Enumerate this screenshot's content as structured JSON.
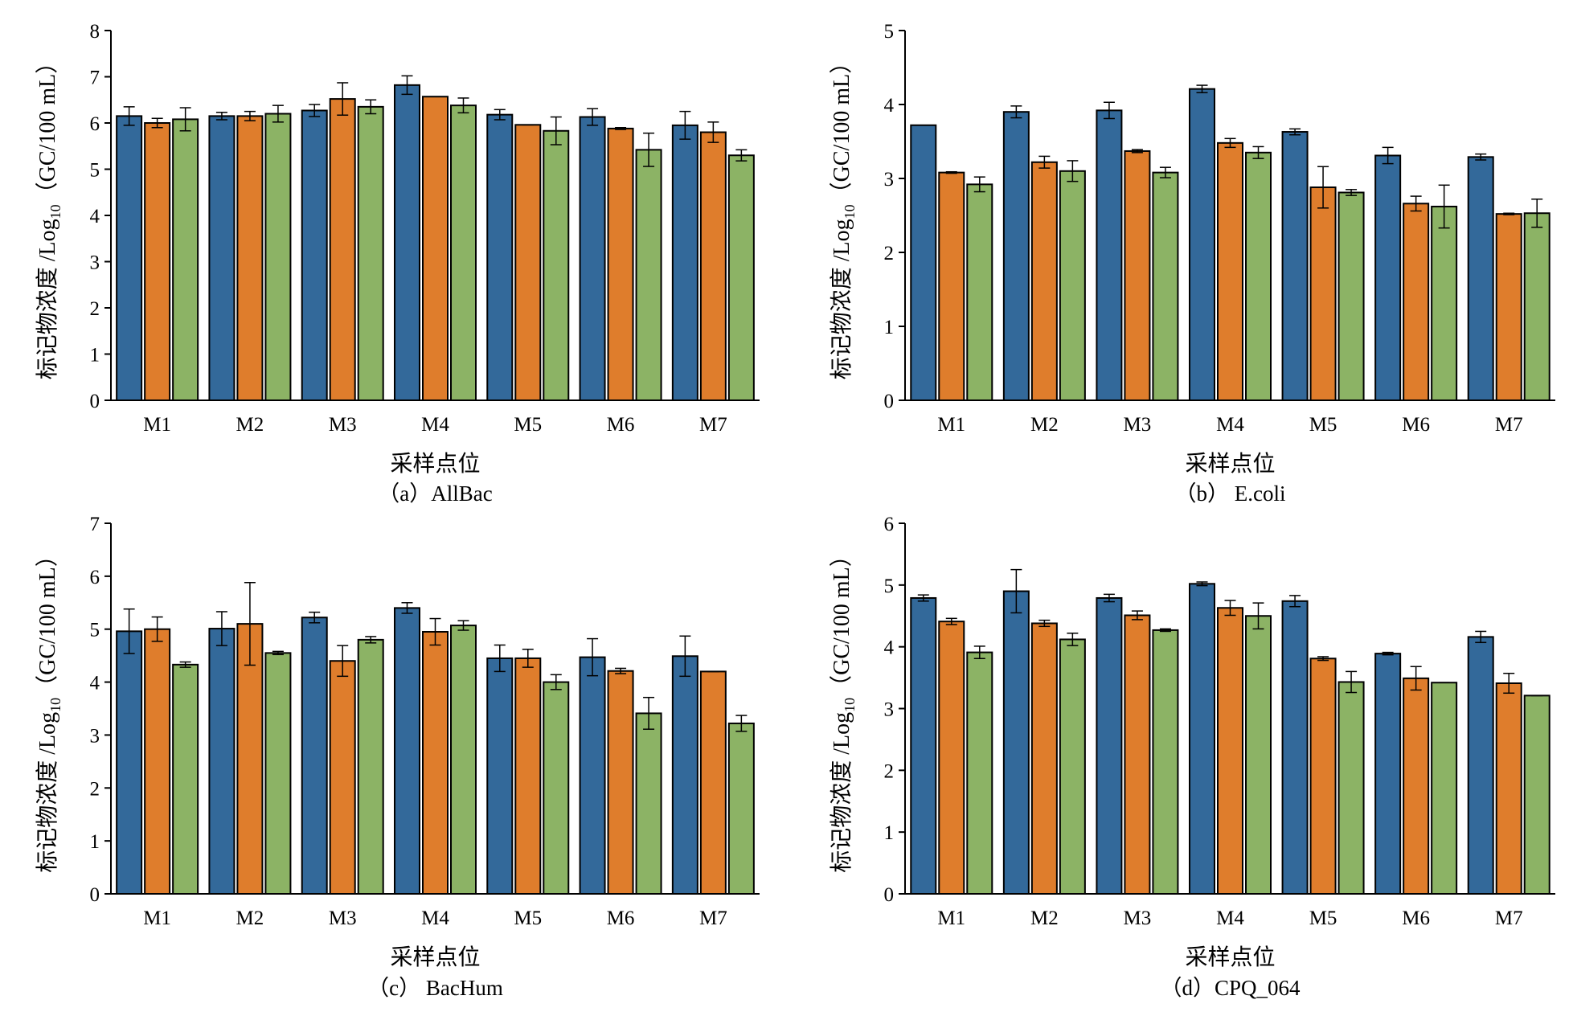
{
  "colors": {
    "series1": "#33699a",
    "series2": "#df7d2c",
    "series3": "#8cb365",
    "axis": "#000000"
  },
  "chart_data": [
    {
      "type": "bar",
      "caption": "（a）AllBac",
      "xlabel": "采样点位",
      "ylabel_main": "标记物浓度 /Log",
      "ylabel_sub": "10",
      "ylabel_tail": "（GC/100 mL）",
      "ylim": [
        0,
        8
      ],
      "yticks": [
        0,
        1,
        2,
        3,
        4,
        5,
        6,
        7,
        8
      ],
      "categories": [
        "M1",
        "M2",
        "M3",
        "M4",
        "M5",
        "M6",
        "M7"
      ],
      "series": [
        {
          "values": [
            6.15,
            6.15,
            6.27,
            6.82,
            6.18,
            6.13,
            5.95
          ],
          "errors": [
            0.2,
            0.08,
            0.13,
            0.2,
            0.11,
            0.18,
            0.3
          ]
        },
        {
          "values": [
            6.0,
            6.15,
            6.52,
            6.57,
            5.96,
            5.88,
            5.8
          ],
          "errors": [
            0.1,
            0.1,
            0.35,
            0.0,
            0.0,
            0.02,
            0.22
          ]
        },
        {
          "values": [
            6.08,
            6.2,
            6.35,
            6.38,
            5.83,
            5.42,
            5.3
          ],
          "errors": [
            0.25,
            0.18,
            0.15,
            0.16,
            0.3,
            0.36,
            0.12
          ]
        }
      ],
      "legend": "none",
      "grid": false
    },
    {
      "type": "bar",
      "caption": "（b） E.coli",
      "xlabel": "采样点位",
      "ylabel_main": "标记物浓度 /Log",
      "ylabel_sub": "10",
      "ylabel_tail": "（GC/100 mL）",
      "ylim": [
        0,
        5
      ],
      "yticks": [
        0,
        1,
        2,
        3,
        4,
        5
      ],
      "categories": [
        "M1",
        "M2",
        "M3",
        "M4",
        "M5",
        "M6",
        "M7"
      ],
      "series": [
        {
          "values": [
            3.72,
            3.9,
            3.92,
            4.21,
            3.63,
            3.31,
            3.29
          ],
          "errors": [
            0.0,
            0.08,
            0.11,
            0.05,
            0.04,
            0.11,
            0.04
          ]
        },
        {
          "values": [
            3.08,
            3.22,
            3.37,
            3.48,
            2.88,
            2.66,
            2.52
          ],
          "errors": [
            0.01,
            0.08,
            0.02,
            0.06,
            0.28,
            0.1,
            0.01
          ]
        },
        {
          "values": [
            2.92,
            3.1,
            3.08,
            3.35,
            2.81,
            2.62,
            2.53
          ],
          "errors": [
            0.1,
            0.14,
            0.07,
            0.08,
            0.04,
            0.29,
            0.19
          ]
        }
      ],
      "legend": "none",
      "grid": false
    },
    {
      "type": "bar",
      "caption": "（c） BacHum",
      "xlabel": "采样点位",
      "ylabel_main": "标记物浓度 /Log",
      "ylabel_sub": "10",
      "ylabel_tail": "（GC/100 mL）",
      "ylim": [
        0,
        7
      ],
      "yticks": [
        0,
        1,
        2,
        3,
        4,
        5,
        6,
        7
      ],
      "categories": [
        "M1",
        "M2",
        "M3",
        "M4",
        "M5",
        "M6",
        "M7"
      ],
      "series": [
        {
          "values": [
            4.96,
            5.01,
            5.22,
            5.4,
            4.45,
            4.47,
            4.49
          ],
          "errors": [
            0.42,
            0.32,
            0.1,
            0.1,
            0.25,
            0.35,
            0.38
          ]
        },
        {
          "values": [
            5.0,
            5.1,
            4.4,
            4.95,
            4.45,
            4.21,
            4.2
          ],
          "errors": [
            0.23,
            0.78,
            0.29,
            0.25,
            0.17,
            0.05,
            0.0
          ]
        },
        {
          "values": [
            4.33,
            4.55,
            4.8,
            5.07,
            4.0,
            3.41,
            3.22
          ],
          "errors": [
            0.05,
            0.03,
            0.06,
            0.09,
            0.14,
            0.3,
            0.15
          ]
        }
      ],
      "legend": "none",
      "grid": false
    },
    {
      "type": "bar",
      "caption": "（d）CPQ_064",
      "xlabel": "采样点位",
      "ylabel_main": "标记物浓度 /Log",
      "ylabel_sub": "10",
      "ylabel_tail": "（GC/100 mL）",
      "ylim": [
        0,
        6
      ],
      "yticks": [
        0,
        1,
        2,
        3,
        4,
        5,
        6
      ],
      "categories": [
        "M1",
        "M2",
        "M3",
        "M4",
        "M5",
        "M6",
        "M7"
      ],
      "series": [
        {
          "values": [
            4.79,
            4.9,
            4.79,
            5.02,
            4.74,
            3.89,
            4.16
          ],
          "errors": [
            0.05,
            0.35,
            0.06,
            0.03,
            0.09,
            0.02,
            0.09
          ]
        },
        {
          "values": [
            4.41,
            4.38,
            4.51,
            4.63,
            3.81,
            3.49,
            3.41
          ],
          "errors": [
            0.05,
            0.05,
            0.07,
            0.12,
            0.03,
            0.19,
            0.16
          ]
        },
        {
          "values": [
            3.91,
            4.12,
            4.27,
            4.5,
            3.43,
            3.42,
            3.21
          ],
          "errors": [
            0.1,
            0.1,
            0.02,
            0.21,
            0.17,
            0.0,
            0.0
          ]
        }
      ],
      "legend": "none",
      "grid": false
    }
  ]
}
